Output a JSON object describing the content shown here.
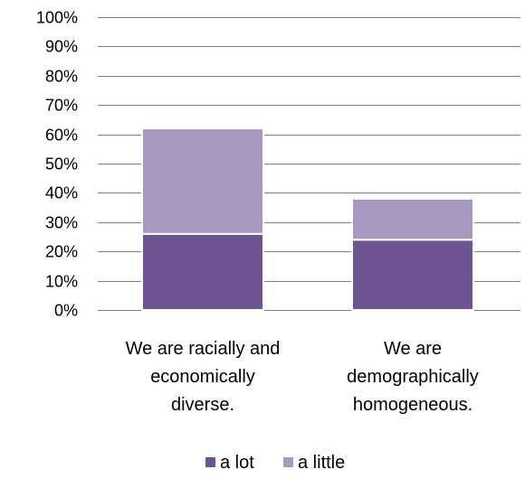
{
  "chart_data": {
    "type": "bar",
    "stacked": true,
    "categories": [
      [
        "We are racially and",
        "economically",
        "diverse."
      ],
      [
        "We are",
        "demographically",
        "homogeneous."
      ]
    ],
    "series": [
      {
        "name": "a lot",
        "values": [
          26,
          24
        ],
        "color": "#6e5490"
      },
      {
        "name": "a little",
        "values": [
          36,
          14
        ],
        "color": "#a898bf"
      }
    ],
    "ylim": [
      0,
      100
    ],
    "yticks": [
      "0%",
      "10%",
      "20%",
      "30%",
      "40%",
      "50%",
      "60%",
      "70%",
      "80%",
      "90%",
      "100%"
    ],
    "grid": true,
    "legend_position": "bottom",
    "title": "",
    "xlabel": "",
    "ylabel": ""
  }
}
